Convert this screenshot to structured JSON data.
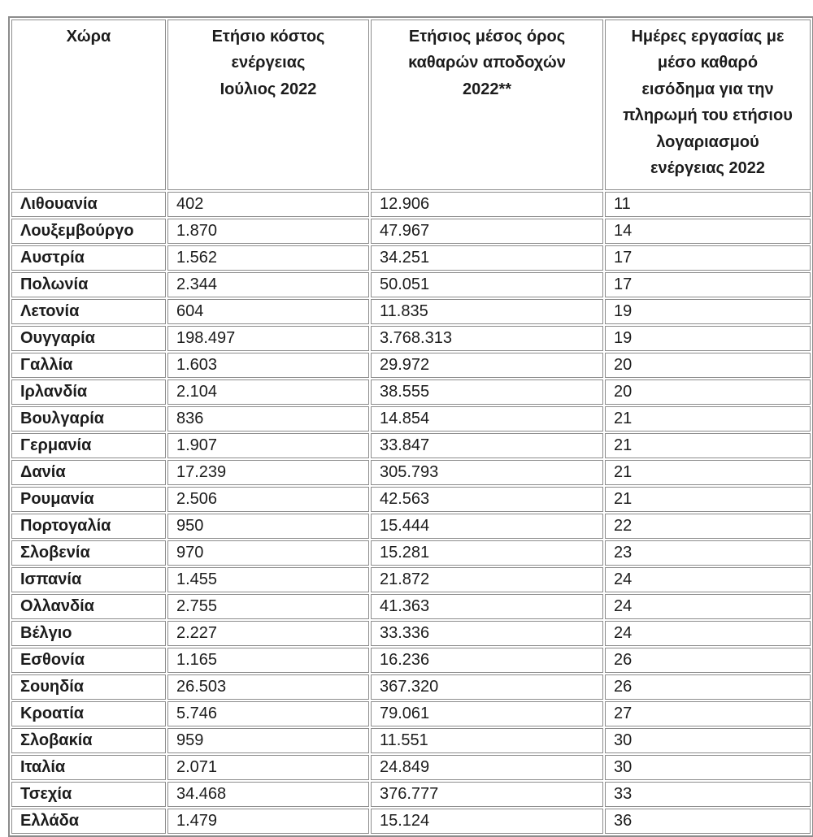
{
  "colors": {
    "border": "#8c8c8c",
    "text": "#1c1c1c",
    "background": "#ffffff"
  },
  "table": {
    "columns": [
      {
        "label": "Χώρα"
      },
      {
        "label": "Ετήσιο κόστος\nενέργειας\nΙούλιος 2022"
      },
      {
        "label": "Ετήσιος μέσος όρος\nκαθαρών αποδοχών\n2022**"
      },
      {
        "label": "Ημέρες εργασίας με\nμέσο καθαρό\nεισόδημα για την\nπληρωμή του ετήσιου\nλογαριασμού\nενέργειας 2022"
      }
    ],
    "rows": [
      {
        "country": "Λιθουανία",
        "annual_energy_cost_july_2022": "402",
        "annual_avg_net_earnings_2022": "12.906",
        "work_days_to_pay_energy_bill_2022": "11"
      },
      {
        "country": "Λουξεμβούργο",
        "annual_energy_cost_july_2022": "1.870",
        "annual_avg_net_earnings_2022": "47.967",
        "work_days_to_pay_energy_bill_2022": "14"
      },
      {
        "country": "Αυστρία",
        "annual_energy_cost_july_2022": "1.562",
        "annual_avg_net_earnings_2022": "34.251",
        "work_days_to_pay_energy_bill_2022": "17"
      },
      {
        "country": "Πολωνία",
        "annual_energy_cost_july_2022": "2.344",
        "annual_avg_net_earnings_2022": "50.051",
        "work_days_to_pay_energy_bill_2022": "17"
      },
      {
        "country": "Λετονία",
        "annual_energy_cost_july_2022": "604",
        "annual_avg_net_earnings_2022": "11.835",
        "work_days_to_pay_energy_bill_2022": "19"
      },
      {
        "country": "Ουγγαρία",
        "annual_energy_cost_july_2022": "198.497",
        "annual_avg_net_earnings_2022": "3.768.313",
        "work_days_to_pay_energy_bill_2022": "19"
      },
      {
        "country": "Γαλλία",
        "annual_energy_cost_july_2022": "1.603",
        "annual_avg_net_earnings_2022": "29.972",
        "work_days_to_pay_energy_bill_2022": "20"
      },
      {
        "country": "Ιρλανδία",
        "annual_energy_cost_july_2022": "2.104",
        "annual_avg_net_earnings_2022": "38.555",
        "work_days_to_pay_energy_bill_2022": "20"
      },
      {
        "country": "Βουλγαρία",
        "annual_energy_cost_july_2022": "836",
        "annual_avg_net_earnings_2022": "14.854",
        "work_days_to_pay_energy_bill_2022": "21"
      },
      {
        "country": "Γερμανία",
        "annual_energy_cost_july_2022": "1.907",
        "annual_avg_net_earnings_2022": "33.847",
        "work_days_to_pay_energy_bill_2022": "21"
      },
      {
        "country": "Δανία",
        "annual_energy_cost_july_2022": "17.239",
        "annual_avg_net_earnings_2022": "305.793",
        "work_days_to_pay_energy_bill_2022": "21"
      },
      {
        "country": "Ρουμανία",
        "annual_energy_cost_july_2022": "2.506",
        "annual_avg_net_earnings_2022": "42.563",
        "work_days_to_pay_energy_bill_2022": "21"
      },
      {
        "country": "Πορτογαλία",
        "annual_energy_cost_july_2022": "950",
        "annual_avg_net_earnings_2022": "15.444",
        "work_days_to_pay_energy_bill_2022": "22"
      },
      {
        "country": "Σλοβενία",
        "annual_energy_cost_july_2022": "970",
        "annual_avg_net_earnings_2022": "15.281",
        "work_days_to_pay_energy_bill_2022": "23"
      },
      {
        "country": "Ισπανία",
        "annual_energy_cost_july_2022": "1.455",
        "annual_avg_net_earnings_2022": "21.872",
        "work_days_to_pay_energy_bill_2022": "24"
      },
      {
        "country": "Ολλανδία",
        "annual_energy_cost_july_2022": "2.755",
        "annual_avg_net_earnings_2022": "41.363",
        "work_days_to_pay_energy_bill_2022": "24"
      },
      {
        "country": "Βέλγιο",
        "annual_energy_cost_july_2022": "2.227",
        "annual_avg_net_earnings_2022": "33.336",
        "work_days_to_pay_energy_bill_2022": "24"
      },
      {
        "country": "Εσθονία",
        "annual_energy_cost_july_2022": "1.165",
        "annual_avg_net_earnings_2022": "16.236",
        "work_days_to_pay_energy_bill_2022": "26"
      },
      {
        "country": "Σουηδία",
        "annual_energy_cost_july_2022": "26.503",
        "annual_avg_net_earnings_2022": "367.320",
        "work_days_to_pay_energy_bill_2022": "26"
      },
      {
        "country": "Κροατία",
        "annual_energy_cost_july_2022": "5.746",
        "annual_avg_net_earnings_2022": "79.061",
        "work_days_to_pay_energy_bill_2022": "27"
      },
      {
        "country": "Σλοβακία",
        "annual_energy_cost_july_2022": "959",
        "annual_avg_net_earnings_2022": "11.551",
        "work_days_to_pay_energy_bill_2022": "30"
      },
      {
        "country": "Ιταλία",
        "annual_energy_cost_july_2022": "2.071",
        "annual_avg_net_earnings_2022": "24.849",
        "work_days_to_pay_energy_bill_2022": "30"
      },
      {
        "country": "Τσεχία",
        "annual_energy_cost_july_2022": "34.468",
        "annual_avg_net_earnings_2022": "376.777",
        "work_days_to_pay_energy_bill_2022": "33"
      },
      {
        "country": "Ελλάδα",
        "annual_energy_cost_july_2022": "1.479",
        "annual_avg_net_earnings_2022": "15.124",
        "work_days_to_pay_energy_bill_2022": "36"
      }
    ]
  }
}
